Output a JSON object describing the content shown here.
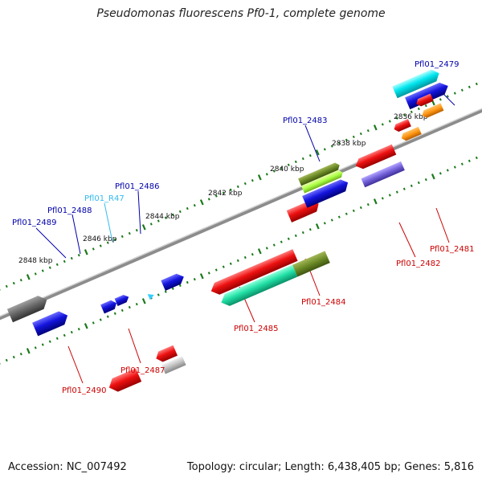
{
  "title": "Pseudomonas fluorescens Pf0-1, complete genome",
  "footer": {
    "accession": "Accession: NC_007492",
    "summary": "Topology: circular; Length: 6,438,405 bp; Genes: 5,816"
  },
  "ruler": [
    "2836 kbp",
    "2838 kbp",
    "2840 kbp",
    "2842 kbp",
    "2844 kbp",
    "2846 kbp",
    "2848 kbp"
  ],
  "labels_upper": [
    "Pfl01_2479",
    "Pfl01_2483",
    "Pfl01_2486",
    "Pfl01_2488",
    "Pfl01_2489"
  ],
  "label_rna": "Pfl01_R47",
  "labels_lower": [
    "Pfl01_2481",
    "Pfl01_2482",
    "Pfl01_2484",
    "Pfl01_2485",
    "Pfl01_2487",
    "Pfl01_2490"
  ],
  "colors": {
    "backbone": "#8c8c8c",
    "tick": "#1a7a1a",
    "forward_gene": "#1010dd",
    "reverse_gene": "#dd1111",
    "label_upper": "#0000aa",
    "label_lower": "#cc0000",
    "label_rna": "#33bbee"
  }
}
